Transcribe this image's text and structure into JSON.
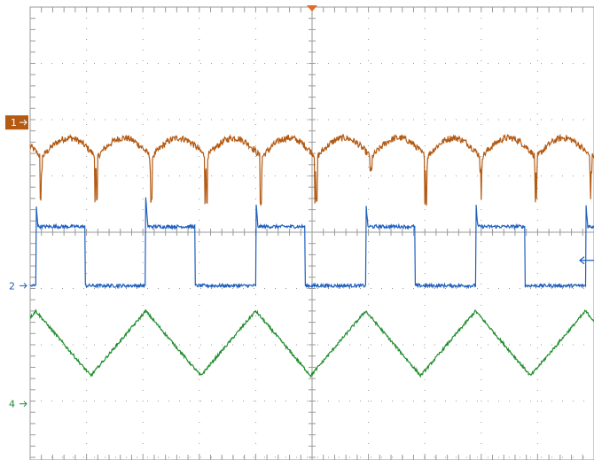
{
  "scope": {
    "grid": true,
    "colors": {
      "background": "#ffffff",
      "grid": "#9a9a9a",
      "ch1": "#b35a13",
      "ch2": "#1f5fbf",
      "ch4": "#1f8c2c",
      "trigger": "#e06b25",
      "marker_text": "#ffffff"
    }
  },
  "channels": [
    {
      "id": "1",
      "label": "1",
      "color": "#b35a13",
      "marker_style": "box"
    },
    {
      "id": "2",
      "label": "2",
      "color": "#1f5fbf",
      "marker_style": "text"
    },
    {
      "id": "4",
      "label": "4",
      "color": "#1f8c2c",
      "marker_style": "text"
    }
  ],
  "trigger": {
    "marker": "trigger-position",
    "level_marker": "trigger-level"
  },
  "chart_data": {
    "type": "line",
    "title": "",
    "xlabel": "",
    "ylabel": "",
    "grid": true,
    "xlim": [
      0,
      10
    ],
    "ylim": [
      -4,
      4
    ],
    "divisions": {
      "x": 10,
      "y": 8
    },
    "series": [
      {
        "id": "ch1",
        "waveform": "rectified-ripple",
        "period_div": 1.95,
        "baseline_div": 1.5,
        "amplitude_div": 0.35,
        "spike_div": -0.8,
        "phase_div": 0.2
      },
      {
        "id": "ch2",
        "waveform": "square",
        "period_div": 1.95,
        "duty": 0.45,
        "high_div": 0.1,
        "low_div": -0.95,
        "phase_div": 0.1
      },
      {
        "id": "ch4",
        "waveform": "triangle",
        "period_div": 1.95,
        "high_div": -1.4,
        "low_div": -2.55,
        "phase_div": 0.1
      }
    ]
  }
}
